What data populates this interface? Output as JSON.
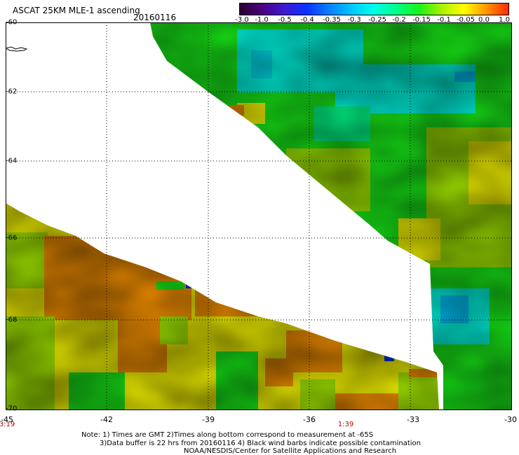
{
  "header": {
    "title": "ASCAT 25KM MLE-1 ascending",
    "date": "20160116"
  },
  "colorbar": {
    "ticks": [
      "-3.0",
      "-1.0",
      "-0.5",
      "-0.4",
      "-0.35",
      "-0.3",
      "-0.25",
      "-0.2",
      "-0.15",
      "-0.1",
      "-0.05",
      "0.0",
      "1.0"
    ],
    "colors": [
      "#2a0030",
      "#4b0082",
      "#3c1ad0",
      "#0a32ff",
      "#0a80ff",
      "#00c8ff",
      "#00ffe8",
      "#00ff8a",
      "#18f218",
      "#a8f000",
      "#ffff00",
      "#ff9600",
      "#ff2a00"
    ]
  },
  "axes": {
    "y_labels": [
      "-60",
      "-62",
      "-64",
      "-66",
      "-68",
      "-70"
    ],
    "x_labels": [
      "-45",
      "-42",
      "-39",
      "-36",
      "-33",
      "-30"
    ],
    "lat_range": [
      -60,
      -70
    ],
    "lon_range": [
      -45,
      -30
    ]
  },
  "time_labels": [
    "3:19",
    "1:39"
  ],
  "notes": {
    "line1": "Note: 1) Times are GMT 2)Times along bottom correspond to measurement at -65S",
    "line2": "3)Data buffer is 22 hrs from 20160116 4) Black wind barbs indicate possible contamination",
    "line3": "NOAA/NESDIS/Center for Satellite Applications and Research"
  }
}
